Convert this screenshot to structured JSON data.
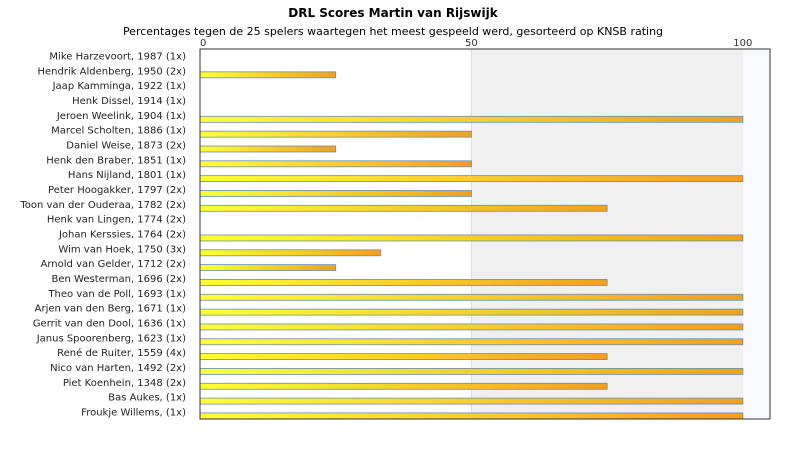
{
  "chart_data": {
    "type": "bar",
    "orientation": "horizontal",
    "title": "DRL Scores Martin van Rijswijk",
    "subtitle": "Percentages tegen de 25 spelers waartegen het meest gespeeld werd, gesorteerd op KNSB rating",
    "xlim": [
      0,
      105
    ],
    "xticks": [
      "0",
      "50",
      "100"
    ],
    "categories": [
      "Mike Harzevoort, 1987 (1x)",
      "Hendrik Aldenberg, 1950 (2x)",
      "Jaap Kamminga, 1922 (1x)",
      "Henk Dissel, 1914 (1x)",
      "Jeroen Weelink, 1904 (1x)",
      "Marcel Scholten, 1886 (1x)",
      "Daniel Weise, 1873 (2x)",
      "Henk den Braber, 1851 (1x)",
      "Hans Nijland, 1801 (1x)",
      "Peter Hoogakker, 1797 (2x)",
      "Toon van der Ouderaa, 1782 (2x)",
      "Henk van Lingen, 1774 (2x)",
      "Johan Kerssies, 1764 (2x)",
      "Wim van Hoek, 1750 (3x)",
      "Arnold van Gelder, 1712 (2x)",
      "Ben Westerman, 1696 (2x)",
      "Theo van de Poll, 1693 (1x)",
      "Arjen van den Berg, 1671 (1x)",
      "Gerrit van den Dool, 1636 (1x)",
      "Janus Spoorenberg, 1623 (1x)",
      "René de Ruiter, 1559 (4x)",
      "Nico van Harten, 1492 (2x)",
      "Piet Koenhein, 1348 (2x)",
      "Bas Aukes,  (1x)",
      "Froukje Willems,  (1x)"
    ],
    "values": [
      0,
      25,
      0,
      0,
      100,
      50,
      25,
      50,
      100,
      50,
      75,
      0,
      100,
      33.3,
      25,
      75,
      100,
      100,
      100,
      100,
      75,
      100,
      75,
      100,
      100
    ],
    "colors": {
      "bar_start": "#ffff33",
      "bar_end": "#f0a020",
      "bar_edge": "#6a8fb5",
      "band_mid": "#f0f0f0",
      "band_high": "#f8f9fc",
      "frame": "#333333"
    },
    "grid": false,
    "legend": "none"
  }
}
